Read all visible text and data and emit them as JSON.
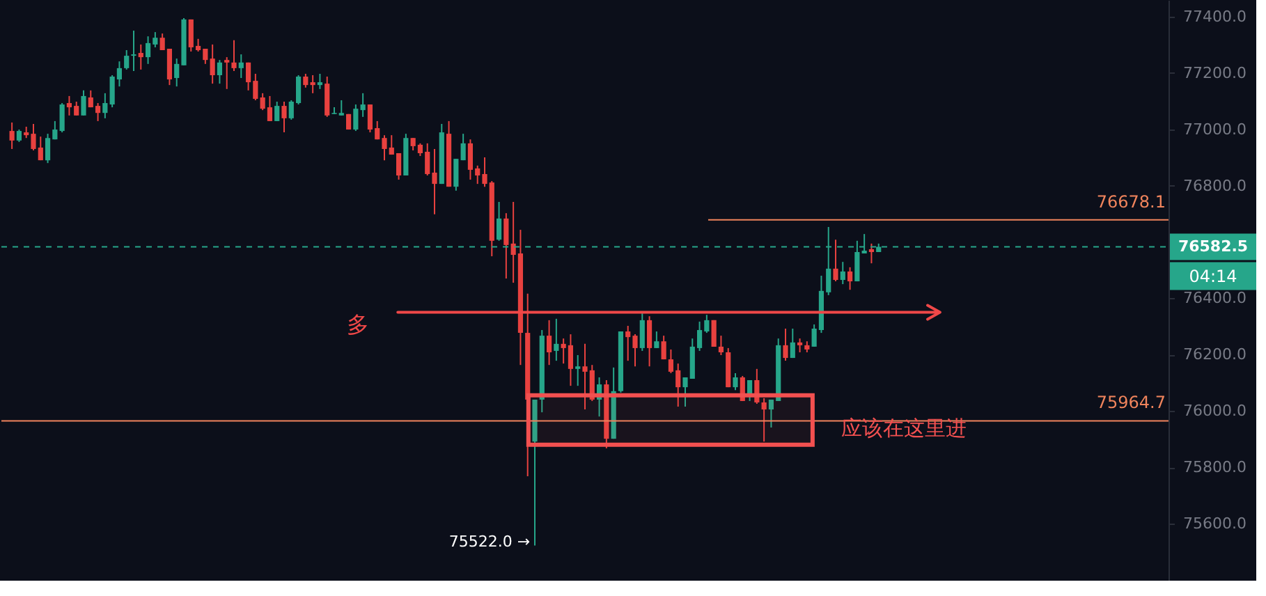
{
  "chart_data": {
    "type": "candlestick",
    "categories": [
      null,
      null,
      null,
      null,
      null,
      null,
      null,
      null,
      null,
      null,
      null,
      null,
      null,
      null,
      null,
      null,
      null,
      null,
      null,
      null,
      null,
      null,
      null,
      null,
      null,
      null,
      null,
      null,
      null,
      null,
      null,
      null,
      null,
      null,
      null,
      null,
      null,
      null,
      null,
      null,
      null,
      null,
      null,
      null,
      null,
      null,
      null,
      null,
      null,
      null,
      null,
      null,
      null,
      null,
      null,
      null,
      null,
      null,
      null,
      null,
      null,
      null,
      null,
      null,
      null,
      null,
      null,
      null,
      null,
      null,
      null,
      null,
      null,
      null,
      null,
      null,
      null,
      null,
      null,
      null,
      null,
      null,
      null,
      null,
      null,
      null,
      null,
      null,
      null,
      null,
      null,
      null,
      null,
      null,
      null,
      null,
      null,
      null,
      null,
      null,
      null,
      null,
      null,
      null,
      null,
      null,
      null,
      null,
      null,
      null,
      null,
      null,
      null,
      null,
      null,
      null,
      null,
      null,
      null,
      null,
      null,
      null,
      null,
      null,
      null,
      null,
      null,
      null,
      null,
      null,
      null,
      null,
      null,
      null,
      null,
      null,
      null,
      null,
      null,
      null,
      null,
      null,
      null,
      null,
      null,
      null,
      null,
      null,
      null,
      null,
      null,
      null,
      null,
      null,
      null,
      null,
      null,
      null,
      null,
      null,
      null
    ],
    "ohlc": [
      [
        76994,
        77024,
        76930,
        76960
      ],
      [
        76960,
        76999,
        76955,
        76994
      ],
      [
        76989,
        77009,
        76969,
        76979
      ],
      [
        76984,
        77019,
        76925,
        76930
      ],
      [
        76935,
        76974,
        76890,
        76890
      ],
      [
        76890,
        76984,
        76880,
        76969
      ],
      [
        76964,
        77029,
        76964,
        76999
      ],
      [
        76994,
        77093,
        76989,
        77088
      ],
      [
        77093,
        77118,
        77049,
        77078
      ],
      [
        77083,
        77098,
        77049,
        77049
      ],
      [
        77049,
        77138,
        77049,
        77118
      ],
      [
        77113,
        77138,
        77078,
        77078
      ],
      [
        77083,
        77093,
        77029,
        77058
      ],
      [
        77058,
        77128,
        77039,
        77093
      ],
      [
        77088,
        77192,
        77078,
        77187
      ],
      [
        77177,
        77241,
        77152,
        77217
      ],
      [
        77217,
        77281,
        77212,
        77261
      ],
      [
        77261,
        77350,
        77207,
        77266
      ],
      [
        77271,
        77301,
        77212,
        77256
      ],
      [
        77256,
        77330,
        77232,
        77306
      ],
      [
        77301,
        77345,
        77291,
        77325
      ],
      [
        77325,
        77340,
        77281,
        77281
      ],
      [
        77286,
        77286,
        77157,
        77177
      ],
      [
        77182,
        77251,
        77152,
        77232
      ],
      [
        77227,
        77395,
        77227,
        77390
      ],
      [
        77390,
        77390,
        77276,
        77291
      ],
      [
        77296,
        77321,
        77276,
        77281
      ],
      [
        77286,
        77286,
        77232,
        77246
      ],
      [
        77251,
        77301,
        77162,
        77192
      ],
      [
        77192,
        77246,
        77162,
        77237
      ],
      [
        77246,
        77256,
        77143,
        77237
      ],
      [
        77237,
        77316,
        77207,
        77217
      ],
      [
        77217,
        77266,
        77182,
        77237
      ],
      [
        77237,
        77237,
        77138,
        77167
      ],
      [
        77172,
        77197,
        77103,
        77108
      ],
      [
        77113,
        77128,
        77068,
        77073
      ],
      [
        77078,
        77118,
        77029,
        77029
      ],
      [
        77029,
        77098,
        77029,
        77083
      ],
      [
        77083,
        77098,
        76989,
        77039
      ],
      [
        77039,
        77103,
        77034,
        77098
      ],
      [
        77093,
        77192,
        77088,
        77187
      ],
      [
        77187,
        77197,
        77148,
        77157
      ],
      [
        77167,
        77192,
        77128,
        77157
      ],
      [
        77157,
        77197,
        77143,
        77167
      ],
      [
        77162,
        77187,
        77044,
        77049
      ],
      [
        77054,
        77078,
        77054,
        77058
      ],
      [
        77049,
        77103,
        77049,
        77058
      ],
      [
        77054,
        77054,
        76999,
        76999
      ],
      [
        76999,
        77088,
        76994,
        77073
      ],
      [
        77068,
        77128,
        77044,
        77088
      ],
      [
        77088,
        77088,
        76989,
        76999
      ],
      [
        77004,
        77029,
        76964,
        76964
      ],
      [
        76969,
        76979,
        76890,
        76930
      ],
      [
        76935,
        76979,
        76910,
        76910
      ],
      [
        76915,
        76915,
        76821,
        76836
      ],
      [
        76836,
        76984,
        76836,
        76969
      ],
      [
        76969,
        76969,
        76925,
        76940
      ],
      [
        76945,
        76950,
        76905,
        76915
      ],
      [
        76920,
        76950,
        76836,
        76841
      ],
      [
        76846,
        76930,
        76698,
        76806
      ],
      [
        76806,
        77019,
        76806,
        76989
      ],
      [
        76984,
        77029,
        76796,
        76796
      ],
      [
        76796,
        76895,
        76782,
        76895
      ],
      [
        76890,
        76984,
        76890,
        76950
      ],
      [
        76950,
        76964,
        76821,
        76856
      ],
      [
        76861,
        76871,
        76806,
        76836
      ],
      [
        76841,
        76900,
        76796,
        76806
      ],
      [
        76811,
        76816,
        76549,
        76604
      ],
      [
        76608,
        76742,
        76604,
        76683
      ],
      [
        76683,
        76702,
        76470,
        76589
      ],
      [
        76594,
        76742,
        76455,
        76554
      ],
      [
        76559,
        76643,
        76163,
        76277
      ],
      [
        76277,
        76416,
        75768,
        76040
      ],
      [
        75891,
        76040,
        75522,
        76040
      ],
      [
        76040,
        76287,
        75995,
        76267
      ],
      [
        76267,
        76322,
        76163,
        76208
      ],
      [
        76213,
        76327,
        76178,
        76238
      ],
      [
        76238,
        76257,
        76168,
        76223
      ],
      [
        76233,
        76272,
        76089,
        76149
      ],
      [
        76149,
        76198,
        76089,
        76158
      ],
      [
        76158,
        76238,
        76005,
        76139
      ],
      [
        76144,
        76163,
        76035,
        76040
      ],
      [
        76040,
        76119,
        75980,
        76094
      ],
      [
        76094,
        76109,
        75867,
        75901
      ],
      [
        75901,
        76154,
        75901,
        76070
      ],
      [
        76070,
        76282,
        76065,
        76282
      ],
      [
        76282,
        76302,
        76178,
        76262
      ],
      [
        76267,
        76272,
        76158,
        76223
      ],
      [
        76223,
        76346,
        76213,
        76322
      ],
      [
        76322,
        76336,
        76158,
        76223
      ],
      [
        76223,
        76282,
        76223,
        76247
      ],
      [
        76247,
        76267,
        76183,
        76183
      ],
      [
        76183,
        76218,
        76134,
        76139
      ],
      [
        76144,
        76168,
        76015,
        76084
      ],
      [
        76084,
        76119,
        76015,
        76119
      ],
      [
        76114,
        76257,
        76114,
        76228
      ],
      [
        76223,
        76317,
        76213,
        76287
      ],
      [
        76282,
        76341,
        76277,
        76322
      ],
      [
        76322,
        76322,
        76228,
        76228
      ],
      [
        76228,
        76267,
        76198,
        76208
      ],
      [
        76208,
        76223,
        76084,
        76084
      ],
      [
        76084,
        76134,
        76074,
        76119
      ],
      [
        76119,
        76124,
        76035,
        76035
      ],
      [
        76055,
        76109,
        76035,
        76109
      ],
      [
        76109,
        76149,
        76025,
        76030
      ],
      [
        76030,
        76045,
        75891,
        76005
      ],
      [
        76005,
        76040,
        75941,
        76040
      ],
      [
        76035,
        76257,
        76035,
        76233
      ],
      [
        76233,
        76292,
        76178,
        76188
      ],
      [
        76188,
        76292,
        76188,
        76243
      ],
      [
        76243,
        76257,
        76208,
        76233
      ],
      [
        76233,
        76247,
        76208,
        76218
      ],
      [
        76228,
        76307,
        76228,
        76292
      ],
      [
        76287,
        76480,
        76277,
        76426
      ],
      [
        76421,
        76653,
        76411,
        76505
      ],
      [
        76505,
        76608,
        76460,
        76465
      ],
      [
        76465,
        76529,
        76450,
        76495
      ],
      [
        76495,
        76510,
        76430,
        76460
      ],
      [
        76460,
        76604,
        76460,
        76564
      ],
      [
        76559,
        76628,
        76559,
        76569
      ],
      [
        76574,
        76594,
        76524,
        76564
      ],
      [
        76564,
        76594,
        76564,
        76582.5
      ],
      null,
      null,
      null,
      null,
      null,
      null,
      null,
      null,
      null,
      null,
      null,
      null,
      null,
      null,
      null,
      null,
      null,
      null,
      null,
      null,
      null,
      null,
      null,
      null,
      null,
      null,
      null,
      null,
      null,
      null,
      null,
      null,
      null,
      null,
      null,
      null,
      null,
      null,
      null
    ],
    "ylim": [
      75397,
      77459
    ],
    "yticks": [
      {
        "value": 75600,
        "label": "75600.0"
      },
      {
        "value": 75800,
        "label": "75800.0"
      },
      {
        "value": 76000,
        "label": "76000.0"
      },
      {
        "value": 76200,
        "label": "76200.0"
      },
      {
        "value": 76400,
        "label": "76400.0"
      },
      {
        "value": 76600,
        "label": null
      },
      {
        "value": 76800,
        "label": "76800.0"
      },
      {
        "value": 77000,
        "label": "77000.0"
      },
      {
        "value": 77200,
        "label": "77200.0"
      },
      {
        "value": 77400,
        "label": "77400.0"
      }
    ],
    "tick_labels": "y",
    "grid": false,
    "ref_lines": [
      {
        "axis": "y",
        "value": 76678.1,
        "label": "76678.1",
        "color": "#f0845c"
      },
      {
        "axis": "y",
        "value": 76582.5,
        "label": "76582.5",
        "color": "#26a68a",
        "line_style": "dashed"
      },
      {
        "axis": "y",
        "value": 75964.7,
        "label": "75964.7",
        "color": "#f0845c"
      },
      {
        "axis": "y",
        "value": 76350,
        "label": "多",
        "color": "#f04848"
      }
    ],
    "bands": [
      {
        "axis": "y",
        "from": 75880,
        "to": 76055,
        "label": "应该在这里进",
        "color": "#f25050"
      }
    ],
    "annotations": [
      "75522.0 →",
      "04:14"
    ]
  }
}
